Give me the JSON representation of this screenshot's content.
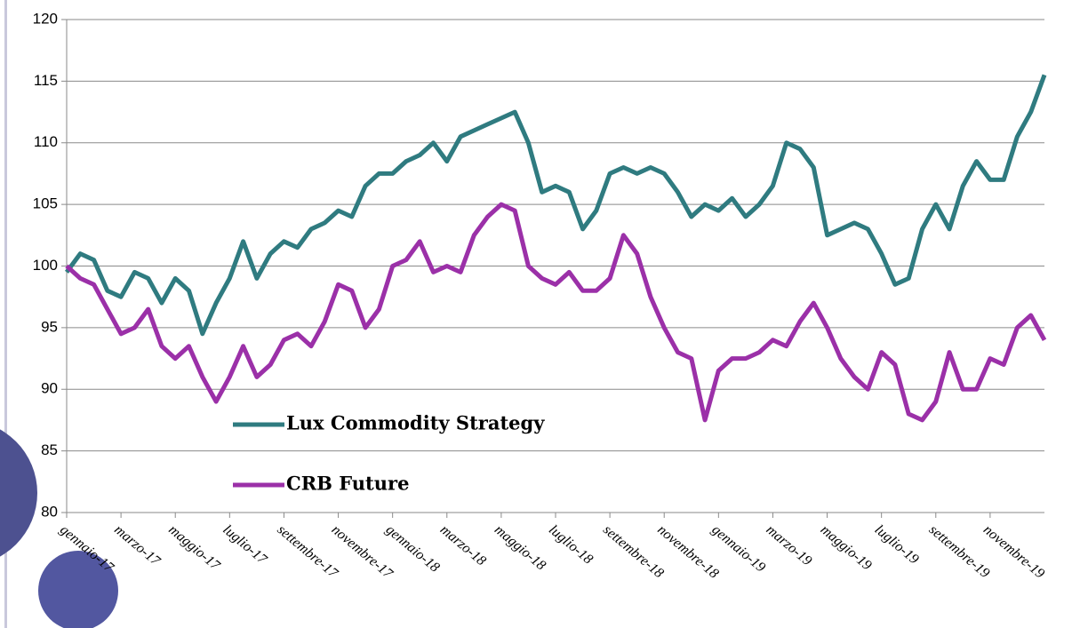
{
  "chart_data": {
    "type": "line",
    "categories": [
      "gennaio-17",
      null,
      null,
      null,
      "marzo-17",
      null,
      null,
      null,
      "maggio-17",
      null,
      null,
      null,
      "luglio-17",
      null,
      null,
      null,
      "settembre-17",
      null,
      null,
      null,
      "novembre-17",
      null,
      null,
      null,
      "gennaio-18",
      null,
      null,
      null,
      "marzo-18",
      null,
      null,
      null,
      "maggio-18",
      null,
      null,
      null,
      "luglio-18",
      null,
      null,
      null,
      "settembre-18",
      null,
      null,
      null,
      "novembre-18",
      null,
      null,
      null,
      "gennaio-19",
      null,
      null,
      null,
      "marzo-19",
      null,
      null,
      null,
      "maggio-19",
      null,
      null,
      null,
      "luglio-19",
      null,
      null,
      null,
      "settembre-19",
      null,
      null,
      null,
      "novembre-19",
      null,
      null,
      null,
      null
    ],
    "series": [
      {
        "name": "Lux Commodity Strategy",
        "color": "#2f7b80",
        "values": [
          99.5,
          101,
          100.5,
          98,
          97.5,
          99.5,
          99,
          97,
          99,
          98,
          94.5,
          97,
          99,
          102,
          99,
          101,
          102,
          101.5,
          103,
          103.5,
          104.5,
          104,
          106.5,
          107.5,
          107.5,
          108.5,
          109,
          110,
          108.5,
          110.5,
          111,
          111.5,
          112,
          112.5,
          110,
          106,
          106.5,
          106,
          103,
          104.5,
          107.5,
          108,
          107.5,
          108,
          107.5,
          106,
          104,
          105,
          104.5,
          105.5,
          104,
          105,
          106.5,
          110,
          109.5,
          108,
          102.5,
          103,
          103.5,
          103,
          101,
          98.5,
          99,
          103,
          105,
          103,
          106.5,
          108.5,
          107,
          107,
          110.5,
          112.5,
          115.5
        ]
      },
      {
        "name": "CRB Future",
        "color": "#9b30a8",
        "values": [
          100,
          99,
          98.5,
          96.5,
          94.5,
          95,
          96.5,
          93.5,
          92.5,
          93.5,
          91,
          89,
          91,
          93.5,
          91,
          92,
          94,
          94.5,
          93.5,
          95.5,
          98.5,
          98,
          95,
          96.5,
          100,
          100.5,
          102,
          99.5,
          100,
          99.5,
          102.5,
          104,
          105,
          104.5,
          100,
          99,
          98.5,
          99.5,
          98,
          98,
          99,
          102.5,
          101,
          97.5,
          95,
          93,
          92.5,
          87.5,
          91.5,
          92.5,
          92.5,
          93,
          94,
          93.5,
          95.5,
          97,
          95,
          92.5,
          91,
          90,
          93,
          92,
          88,
          87.5,
          89,
          93,
          90,
          90,
          92.5,
          92,
          95,
          96,
          94
        ]
      }
    ],
    "ylim": [
      80,
      120
    ],
    "yticks": [
      80,
      85,
      90,
      95,
      100,
      105,
      110,
      115,
      120
    ],
    "grid": true,
    "legend": "lower left"
  }
}
